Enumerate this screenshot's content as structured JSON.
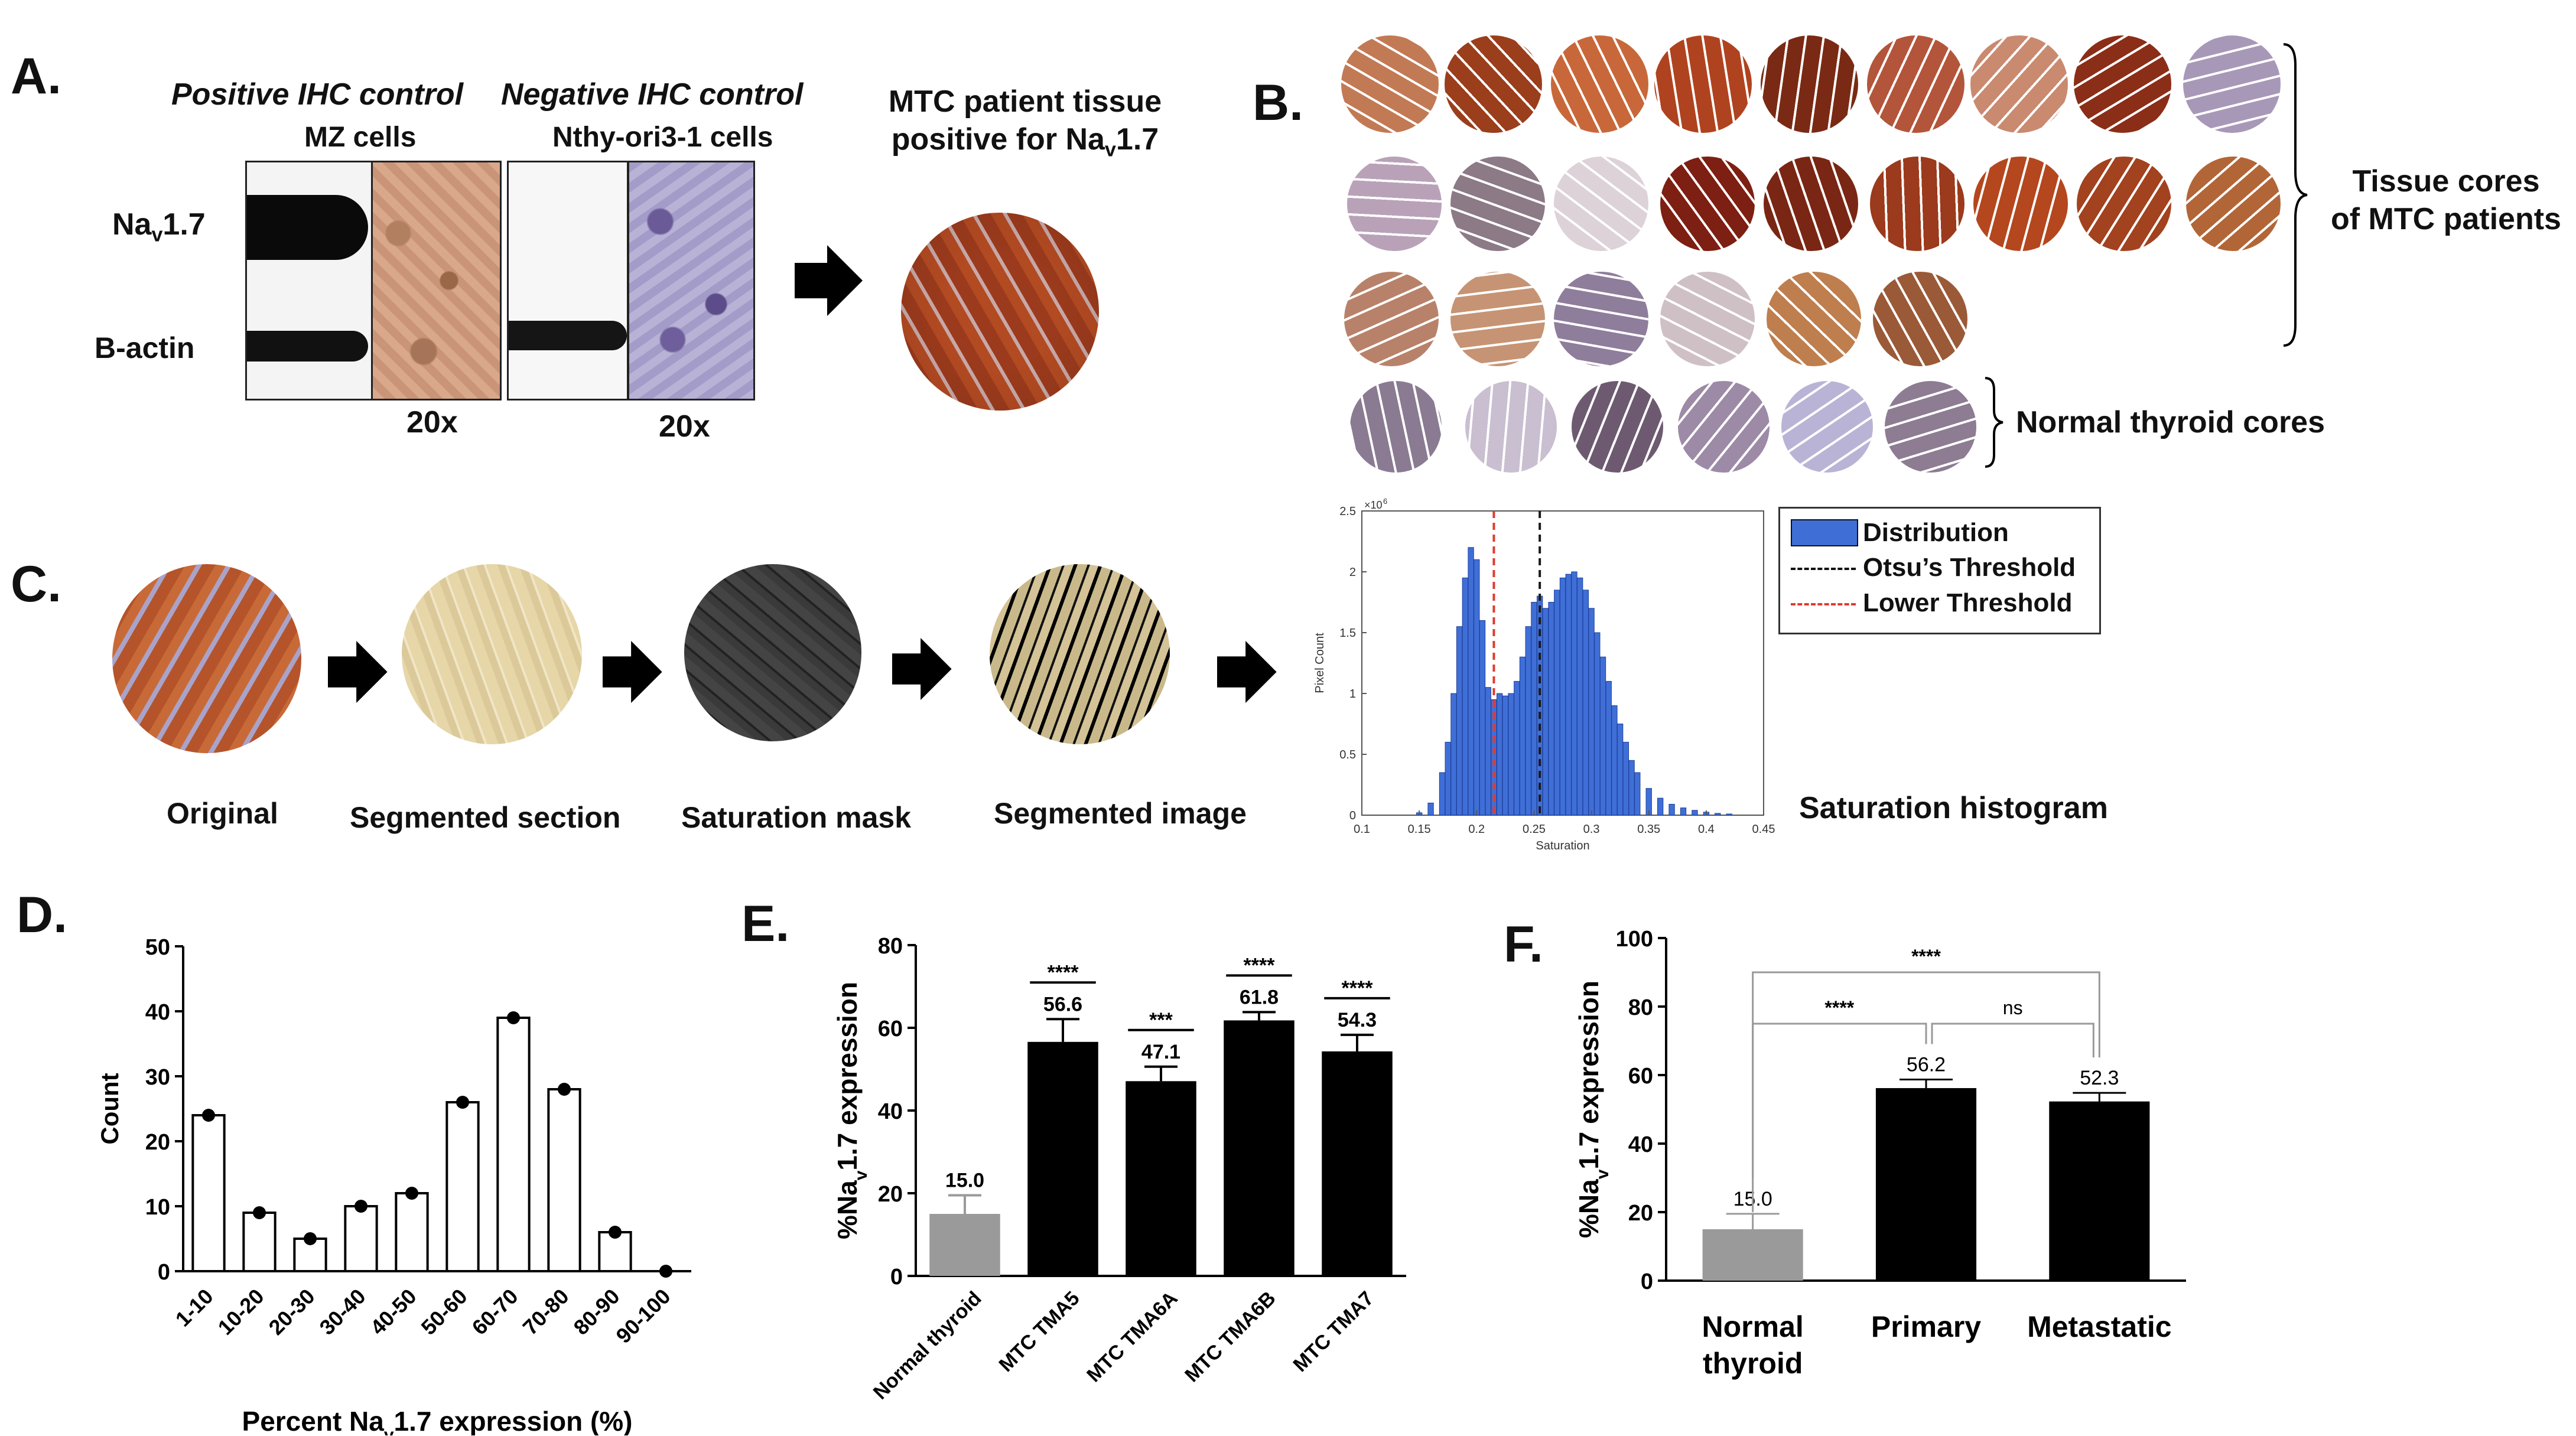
{
  "panel_a": {
    "label": "A.",
    "pos_title": "Positive IHC control",
    "pos_cells": "MZ cells",
    "neg_title": "Negative IHC control",
    "neg_cells": "Nthy-ori3-1 cells",
    "nav_label": "Na",
    "nav_sub": "v",
    "nav_rest": "1.7",
    "bactin_label": "B-actin",
    "mag1": "20x",
    "mag2": "20x",
    "mtc_line1": "MTC patient tissue",
    "mtc_line2a": "positive for Na",
    "mtc_line2sub": "v",
    "mtc_line2b": "1.7"
  },
  "panel_b": {
    "label": "B.",
    "tissue_line1": "Tissue cores",
    "tissue_line2": "of MTC patients",
    "normal_label": "Normal thyroid cores"
  },
  "panel_c": {
    "label": "C.",
    "step1": "Original",
    "step2": "Segmented section",
    "step3": "Saturation mask",
    "step4": "Segmented image",
    "hist_title": "Saturation histogram",
    "legend_dist": "Distribution",
    "legend_otsu": "Otsu’s Threshold",
    "legend_lower": "Lower Threshold",
    "colors": {
      "bars": "#3f6fd6",
      "otsu": "#1a1a1a",
      "lower": "#e23a2e"
    }
  },
  "panel_d": {
    "label": "D."
  },
  "panel_e": {
    "label": "E."
  },
  "panel_f": {
    "label": "F."
  },
  "chart_data": [
    {
      "id": "C-hist",
      "type": "bar",
      "title": "",
      "xlabel": "Saturation",
      "ylabel": "Pixel Count",
      "y_exponent": "×10",
      "y_exponent_power": "6",
      "xlim": [
        0.1,
        0.45
      ],
      "ylim": [
        0,
        2.5
      ],
      "xticks": [
        "0.1",
        "0.15",
        "0.2",
        "0.25",
        "0.3",
        "0.35",
        "0.4",
        "0.45"
      ],
      "yticks": [
        "0",
        "0.5",
        "1",
        "1.5",
        "2",
        "2.5"
      ],
      "otsu_threshold": 0.255,
      "lower_threshold": 0.215,
      "x": [
        0.15,
        0.16,
        0.17,
        0.175,
        0.18,
        0.185,
        0.19,
        0.195,
        0.2,
        0.205,
        0.21,
        0.215,
        0.22,
        0.225,
        0.23,
        0.235,
        0.24,
        0.245,
        0.25,
        0.255,
        0.26,
        0.265,
        0.27,
        0.275,
        0.28,
        0.285,
        0.29,
        0.295,
        0.3,
        0.305,
        0.31,
        0.315,
        0.32,
        0.325,
        0.33,
        0.335,
        0.34,
        0.35,
        0.36,
        0.37,
        0.38,
        0.39,
        0.4,
        0.41,
        0.42
      ],
      "values": [
        0.02,
        0.1,
        0.35,
        0.6,
        1.0,
        1.55,
        1.95,
        2.2,
        2.1,
        1.6,
        1.05,
        0.95,
        1.0,
        0.98,
        1.0,
        1.1,
        1.3,
        1.55,
        1.75,
        1.8,
        1.7,
        1.75,
        1.85,
        1.95,
        1.98,
        2.0,
        1.95,
        1.85,
        1.7,
        1.5,
        1.3,
        1.1,
        0.9,
        0.75,
        0.6,
        0.45,
        0.35,
        0.22,
        0.14,
        0.09,
        0.06,
        0.04,
        0.025,
        0.015,
        0.01
      ]
    },
    {
      "id": "D",
      "type": "bar",
      "title": "",
      "xlabel": "Percent Na",
      "xlabel_sub": "v",
      "xlabel_rest": "1.7 expression (%)",
      "ylabel": "Count",
      "ylim": [
        0,
        50
      ],
      "yticks": [
        "0",
        "10",
        "20",
        "30",
        "40",
        "50"
      ],
      "categories": [
        "1-10",
        "10-20",
        "20-30",
        "30-40",
        "40-50",
        "50-60",
        "60-70",
        "70-80",
        "80-90",
        "90-100"
      ],
      "values": [
        24,
        9,
        5,
        10,
        12,
        26,
        39,
        28,
        6,
        0
      ]
    },
    {
      "id": "E",
      "type": "bar",
      "title": "",
      "xlabel": "",
      "ylabel": "%Na",
      "ylabel_sub": "v",
      "ylabel_rest": "1.7 expression",
      "ylim": [
        0,
        80
      ],
      "yticks": [
        "0",
        "20",
        "40",
        "60",
        "80"
      ],
      "categories": [
        "Normal thyroid",
        "MTC TMA5",
        "MTC TMA6A",
        "MTC TMA6B",
        "MTC TMA7"
      ],
      "values": [
        15.0,
        56.6,
        47.1,
        61.8,
        54.3
      ],
      "value_labels": [
        "15.0",
        "56.6",
        "47.1",
        "61.8",
        "54.3"
      ],
      "errors": [
        4.5,
        5.5,
        3.5,
        2.0,
        4.0
      ],
      "colors": [
        "#9a9a9a",
        "#000000",
        "#000000",
        "#000000",
        "#000000"
      ],
      "significance": [
        "",
        "****",
        "***",
        "****",
        "****"
      ]
    },
    {
      "id": "F",
      "type": "bar",
      "title": "",
      "xlabel": "",
      "ylabel": "%Na",
      "ylabel_sub": "v",
      "ylabel_rest": "1.7 expression",
      "ylim": [
        0,
        100
      ],
      "yticks": [
        "0",
        "20",
        "40",
        "60",
        "80",
        "100"
      ],
      "categories": [
        "Normal thyroid",
        "Primary",
        "Metastatic"
      ],
      "category_lines": [
        [
          "Normal",
          "thyroid"
        ],
        [
          "Primary"
        ],
        [
          "Metastatic"
        ]
      ],
      "values": [
        15.0,
        56.2,
        52.3
      ],
      "value_labels": [
        "15.0",
        "56.2",
        "52.3"
      ],
      "errors": [
        4.5,
        2.5,
        2.5
      ],
      "colors": [
        "#9a9a9a",
        "#000000",
        "#000000"
      ],
      "comparisons": [
        {
          "from": 0,
          "to": 1,
          "label": "****"
        },
        {
          "from": 1,
          "to": 2,
          "label": "ns"
        },
        {
          "from": 0,
          "to": 2,
          "label": "****"
        }
      ]
    }
  ]
}
